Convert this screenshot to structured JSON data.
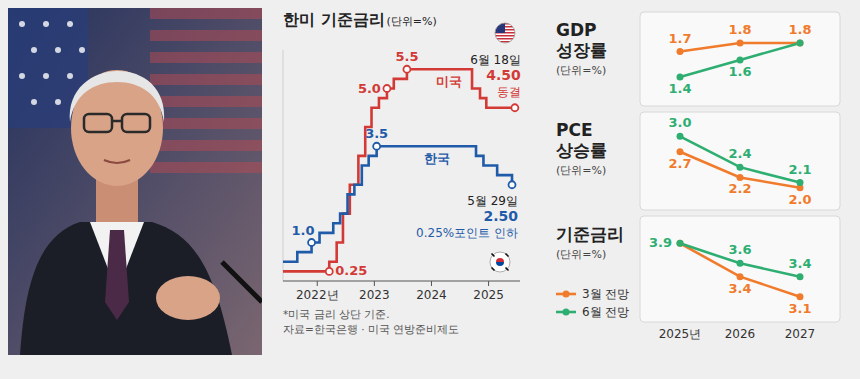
{
  "chart_data": [
    {
      "type": "step",
      "title": "한미 기준금리",
      "subtitle": "(단위=%)",
      "xlim": [
        2021.4,
        2025.55
      ],
      "xticks": [
        {
          "value": 2022,
          "label": "2022년"
        },
        2023,
        2024,
        2025
      ],
      "ylim": [
        0,
        6
      ],
      "tick_labels": "x",
      "series": [
        {
          "name": "미국",
          "color": "#d33a36",
          "x": [
            2021.4,
            2022.21,
            2022.34,
            2022.45,
            2022.57,
            2022.72,
            2022.84,
            2022.95,
            2023.08,
            2023.22,
            2023.34,
            2023.57,
            2024.71,
            2024.85,
            2024.96,
            2025.46
          ],
          "values": [
            0.25,
            0.5,
            1.0,
            1.75,
            2.5,
            3.25,
            4.0,
            4.5,
            4.75,
            5.0,
            5.25,
            5.5,
            5.0,
            4.75,
            4.5,
            4.5
          ]
        },
        {
          "name": "한국",
          "color": "#1f5ba8",
          "x": [
            2021.4,
            2021.65,
            2021.9,
            2022.04,
            2022.28,
            2022.4,
            2022.53,
            2022.65,
            2022.78,
            2022.9,
            2023.04,
            2024.78,
            2024.91,
            2025.15,
            2025.41
          ],
          "values": [
            0.5,
            0.75,
            1.0,
            1.25,
            1.5,
            1.75,
            2.25,
            2.5,
            3.0,
            3.25,
            3.5,
            3.25,
            3.0,
            2.75,
            2.5
          ]
        }
      ],
      "annotations": [
        {
          "lines": [
            "1.0"
          ],
          "x": 2021.9,
          "y": 1.0
        },
        {
          "lines": [
            "0.25"
          ],
          "x": 2022.21,
          "y": 0.25
        },
        {
          "lines": [
            "5.0"
          ],
          "x": 2023.22,
          "y": 5.0
        },
        {
          "lines": [
            "5.5"
          ],
          "x": 2023.57,
          "y": 5.5
        },
        {
          "lines": [
            "3.5"
          ],
          "x": 2023.04,
          "y": 3.5
        },
        {
          "lines": [
            "6월 18일",
            "4.50",
            "동결"
          ],
          "x": 2025.46,
          "y": 4.5
        },
        {
          "lines": [
            "5월 29일",
            "2.50",
            "0.25%포인트 인하"
          ],
          "x": 2025.41,
          "y": 2.5
        }
      ],
      "notes": [
        "*미국 금리 상단 기준.",
        "자료=한국은행 · 미국 연방준비제도"
      ]
    },
    {
      "type": "line",
      "title": "GDP 성장률",
      "subtitle": "(단위=%)",
      "categories": [
        "2025년",
        "2026",
        "2027"
      ],
      "ylim": [
        1.2,
        2.0
      ],
      "tick_labels": false,
      "marker": "circle",
      "data_labels": true,
      "series": [
        {
          "color": "#f07b2c",
          "values": [
            1.7,
            1.8,
            1.8
          ],
          "value_labels": [
            "1.7",
            "1.8",
            "1.8"
          ]
        },
        {
          "color": "#2fae72",
          "values": [
            1.4,
            1.6,
            1.8
          ],
          "value_labels": [
            "1.4",
            "1.6",
            null
          ]
        }
      ]
    },
    {
      "type": "line",
      "title": "PCE 상승률",
      "subtitle": "(단위=%)",
      "categories": [
        "2025년",
        "2026",
        "2027"
      ],
      "ylim": [
        1.8,
        3.2
      ],
      "tick_labels": false,
      "marker": "circle",
      "data_labels": true,
      "series": [
        {
          "color": "#f07b2c",
          "values": [
            2.7,
            2.2,
            2.0
          ],
          "value_labels": [
            "2.7",
            "2.2",
            "2.0"
          ]
        },
        {
          "color": "#2fae72",
          "values": [
            3.0,
            2.4,
            2.1
          ],
          "value_labels": [
            "3.0",
            "2.4",
            "2.1"
          ]
        }
      ]
    },
    {
      "type": "line",
      "title": "기준금리",
      "subtitle": "(단위=%)",
      "categories": [
        "2025년",
        "2026",
        "2027"
      ],
      "ylim": [
        2.9,
        4.1
      ],
      "tick_labels": "x",
      "marker": "circle",
      "data_labels": true,
      "legend": "bottom-left",
      "series": [
        {
          "name": "3월 전망",
          "color": "#f07b2c",
          "values": [
            3.9,
            3.4,
            3.1
          ],
          "value_labels": [
            null,
            "3.4",
            "3.1"
          ]
        },
        {
          "name": "6월 전망",
          "color": "#2fae72",
          "values": [
            3.9,
            3.6,
            3.4
          ],
          "value_labels": [
            "3.9",
            "3.6",
            "3.4"
          ]
        }
      ]
    }
  ]
}
